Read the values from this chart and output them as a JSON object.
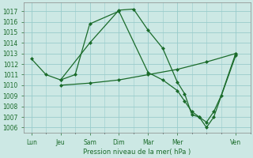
{
  "title": "Pression niveau de la mer( hPa )",
  "bg_color": "#cce8e4",
  "grid_color": "#99cccc",
  "line_color": "#1a6b2a",
  "ylim": [
    1005.5,
    1017.8
  ],
  "yticks": [
    1006,
    1007,
    1008,
    1009,
    1010,
    1011,
    1012,
    1013,
    1014,
    1015,
    1016,
    1017
  ],
  "x_labels": [
    "Lun",
    "Jeu",
    "Sam",
    "Dim",
    "Mar",
    "Mer",
    "Ven"
  ],
  "x_ticks": [
    0,
    2,
    4,
    6,
    8,
    10,
    14
  ],
  "xlim": [
    -0.5,
    15.0
  ],
  "line1_x": [
    0,
    1,
    2,
    4,
    6,
    7,
    8,
    9,
    10,
    10.5,
    11,
    11.5,
    12,
    12.5,
    14
  ],
  "line1_y": [
    1012.5,
    1011.0,
    1010.5,
    1014.0,
    1017.1,
    1017.2,
    1015.2,
    1013.5,
    1010.3,
    1009.2,
    1007.2,
    1007.0,
    1006.0,
    1007.0,
    1012.8
  ],
  "line2_x": [
    2,
    3,
    4,
    6,
    8,
    9,
    10,
    10.5,
    11,
    11.5,
    12,
    12.5,
    13,
    14
  ],
  "line2_y": [
    1010.5,
    1011.0,
    1015.8,
    1017.0,
    1011.2,
    1010.5,
    1009.5,
    1008.5,
    1007.5,
    1007.0,
    1006.5,
    1007.5,
    1009.0,
    1013.0
  ],
  "line3_x": [
    2,
    4,
    6,
    8,
    10,
    12,
    14
  ],
  "line3_y": [
    1010.0,
    1010.2,
    1010.5,
    1011.0,
    1011.5,
    1012.2,
    1013.0
  ]
}
